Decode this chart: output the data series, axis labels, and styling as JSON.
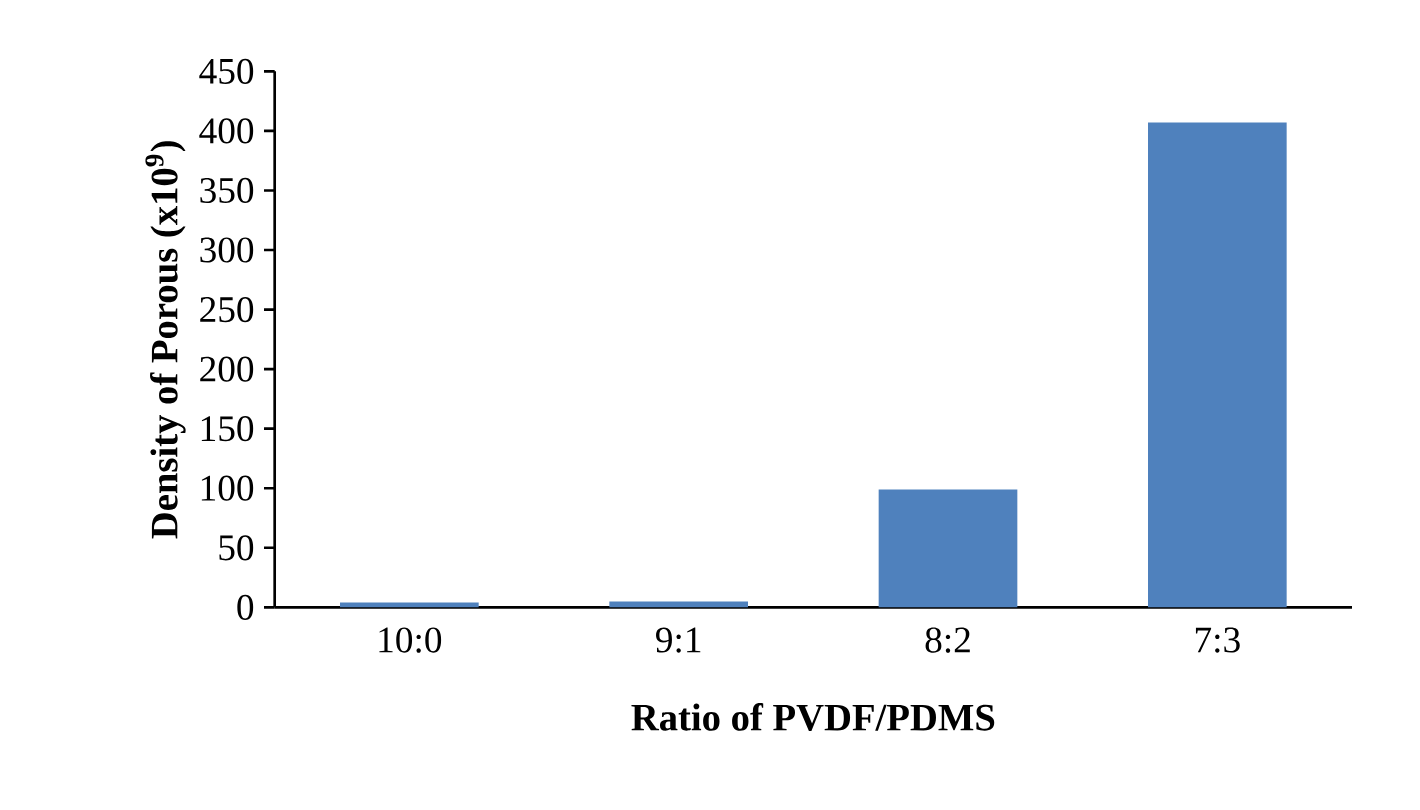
{
  "chart_data": {
    "type": "bar",
    "xlabel": "Ratio of PVDF/PDMS",
    "ylabel": "Density of Porous (x10$^{9}$)",
    "categories": [
      "10:0",
      "9:1",
      "8:2",
      "7:3"
    ],
    "values": [
      4,
      5,
      99,
      407
    ],
    "color": "#4f81bd",
    "ylim": [
      0,
      450
    ],
    "yticks": [
      0,
      50,
      100,
      150,
      200,
      250,
      300,
      350,
      400,
      450
    ],
    "grid": false
  }
}
